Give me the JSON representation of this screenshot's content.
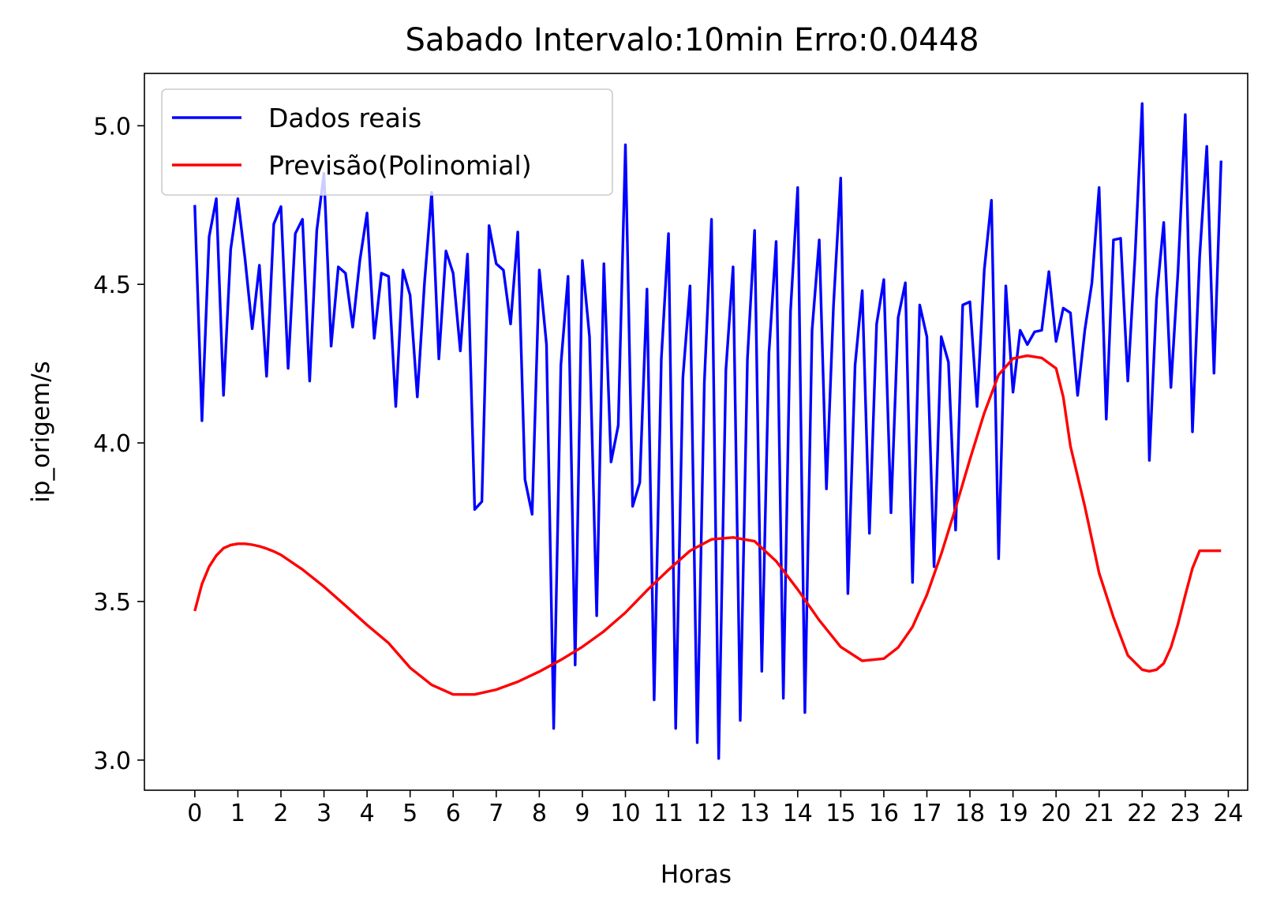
{
  "chart_data": {
    "type": "line",
    "title": "Sabado Intervalo:10min Erro:0.0448",
    "xlabel": "Horas",
    "ylabel": "ip_origem/s",
    "xlim": [
      -1.17,
      24.45
    ],
    "ylim": [
      2.905,
      5.165
    ],
    "xticks": [
      0,
      1,
      2,
      3,
      4,
      5,
      6,
      7,
      8,
      9,
      10,
      11,
      12,
      13,
      14,
      15,
      16,
      17,
      18,
      19,
      20,
      21,
      22,
      23,
      24
    ],
    "xtick_labels": [
      "0",
      "1",
      "2",
      "3",
      "4",
      "5",
      "6",
      "7",
      "8",
      "9",
      "10",
      "11",
      "12",
      "13",
      "14",
      "15",
      "16",
      "17",
      "18",
      "19",
      "20",
      "21",
      "22",
      "23",
      "24"
    ],
    "yticks": [
      3.0,
      3.5,
      4.0,
      4.5,
      5.0
    ],
    "ytick_labels": [
      "3.0",
      "3.5",
      "4.0",
      "4.5",
      "5.0"
    ],
    "grid": false,
    "legend_position": "top-left",
    "series": [
      {
        "name": "Dados reais",
        "color": "#0000ff",
        "x": [
          0,
          0.1667,
          0.3333,
          0.5,
          0.6667,
          0.8333,
          1,
          1.1667,
          1.3333,
          1.5,
          1.6667,
          1.8333,
          2,
          2.1667,
          2.3333,
          2.5,
          2.6667,
          2.8333,
          3,
          3.1667,
          3.3333,
          3.5,
          3.6667,
          3.8333,
          4,
          4.1667,
          4.3333,
          4.5,
          4.6667,
          4.8333,
          5,
          5.1667,
          5.3333,
          5.5,
          5.6667,
          5.8333,
          6,
          6.1667,
          6.3333,
          6.5,
          6.6667,
          6.8333,
          7,
          7.1667,
          7.3333,
          7.5,
          7.6667,
          7.8333,
          8,
          8.1667,
          8.3333,
          8.5,
          8.6667,
          8.8333,
          9,
          9.1667,
          9.3333,
          9.5,
          9.6667,
          9.8333,
          10,
          10.1667,
          10.3333,
          10.5,
          10.6667,
          10.8333,
          11,
          11.1667,
          11.3333,
          11.5,
          11.6667,
          11.8333,
          12,
          12.1667,
          12.3333,
          12.5,
          12.6667,
          12.8333,
          13,
          13.1667,
          13.3333,
          13.5,
          13.6667,
          13.8333,
          14,
          14.1667,
          14.3333,
          14.5,
          14.6667,
          14.8333,
          15,
          15.1667,
          15.3333,
          15.5,
          15.6667,
          15.8333,
          16,
          16.1667,
          16.3333,
          16.5,
          16.6667,
          16.8333,
          17,
          17.1667,
          17.3333,
          17.5,
          17.6667,
          17.8333,
          18,
          18.1667,
          18.3333,
          18.5,
          18.6667,
          18.8333,
          19,
          19.1667,
          19.3333,
          19.5,
          19.6667,
          19.8333,
          20,
          20.1667,
          20.3333,
          20.5,
          20.6667,
          20.8333,
          21,
          21.1667,
          21.3333,
          21.5,
          21.6667,
          21.8333,
          22,
          22.1667,
          22.3333,
          22.5,
          22.6667,
          22.8333,
          23,
          23.1667,
          23.3333,
          23.5,
          23.6667,
          23.8333
        ],
        "y": [
          4.75,
          4.07,
          4.65,
          4.77,
          4.15,
          4.61,
          4.77,
          4.58,
          4.36,
          4.56,
          4.21,
          4.69,
          4.745,
          4.235,
          4.66,
          4.705,
          4.195,
          4.67,
          4.85,
          4.305,
          4.555,
          4.535,
          4.365,
          4.575,
          4.725,
          4.33,
          4.535,
          4.525,
          4.115,
          4.545,
          4.465,
          4.145,
          4.505,
          4.79,
          4.265,
          4.605,
          4.535,
          4.29,
          4.595,
          3.79,
          3.815,
          4.685,
          4.565,
          4.545,
          4.375,
          4.665,
          3.885,
          3.775,
          4.545,
          4.31,
          3.1,
          4.245,
          4.525,
          3.3,
          4.575,
          4.335,
          3.455,
          4.565,
          3.94,
          4.055,
          4.94,
          3.8,
          3.875,
          4.485,
          3.19,
          4.265,
          4.66,
          3.1,
          4.205,
          4.495,
          3.055,
          4.19,
          4.705,
          3.005,
          4.23,
          4.555,
          3.125,
          4.265,
          4.67,
          3.28,
          4.285,
          4.635,
          3.195,
          4.415,
          4.805,
          3.15,
          4.355,
          4.64,
          3.855,
          4.435,
          4.835,
          3.525,
          4.245,
          4.48,
          3.715,
          4.375,
          4.515,
          3.78,
          4.395,
          4.505,
          3.56,
          4.435,
          4.335,
          3.61,
          4.335,
          4.255,
          3.725,
          4.435,
          4.445,
          4.115,
          4.545,
          4.765,
          3.635,
          4.495,
          4.16,
          4.355,
          4.31,
          4.35,
          4.355,
          4.54,
          4.32,
          4.425,
          4.41,
          4.15,
          4.355,
          4.505,
          4.805,
          4.075,
          4.64,
          4.645,
          4.195,
          4.585,
          5.07,
          3.945,
          4.455,
          4.695,
          4.175,
          4.545,
          5.035,
          4.035,
          4.585,
          4.935,
          4.22,
          4.89
        ]
      },
      {
        "name": "Previsão(Polinomial)",
        "color": "#ff0000",
        "x": [
          0,
          0.1667,
          0.3333,
          0.5,
          0.6667,
          0.8333,
          1,
          1.1667,
          1.3333,
          1.5,
          1.6667,
          1.8333,
          2,
          2.5,
          3,
          3.5,
          4,
          4.5,
          5,
          5.5,
          6,
          6.5,
          7,
          7.5,
          8,
          8.5,
          9,
          9.5,
          10,
          10.5,
          11,
          11.5,
          12,
          12.5,
          13,
          13.5,
          14,
          14.5,
          15,
          15.5,
          16,
          16.3333,
          16.6667,
          17,
          17.3333,
          17.6667,
          18,
          18.3333,
          18.6667,
          19,
          19.3333,
          19.6667,
          20,
          20.1667,
          20.3333,
          20.6667,
          21,
          21.3333,
          21.6667,
          22,
          22.1667,
          22.3333,
          22.5,
          22.6667,
          22.8333,
          23,
          23.1667,
          23.3333,
          23.5,
          23.6667,
          23.8333
        ],
        "y": [
          3.47,
          3.555,
          3.61,
          3.645,
          3.668,
          3.678,
          3.682,
          3.682,
          3.679,
          3.674,
          3.667,
          3.658,
          3.647,
          3.601,
          3.547,
          3.487,
          3.426,
          3.369,
          3.291,
          3.237,
          3.207,
          3.207,
          3.222,
          3.247,
          3.279,
          3.316,
          3.357,
          3.406,
          3.465,
          3.535,
          3.6,
          3.66,
          3.696,
          3.702,
          3.69,
          3.627,
          3.538,
          3.441,
          3.357,
          3.313,
          3.32,
          3.355,
          3.42,
          3.521,
          3.65,
          3.795,
          3.948,
          4.094,
          4.215,
          4.266,
          4.275,
          4.268,
          4.235,
          4.145,
          3.99,
          3.8,
          3.59,
          3.45,
          3.33,
          3.285,
          3.28,
          3.285,
          3.305,
          3.355,
          3.43,
          3.52,
          3.605,
          3.66,
          3.66,
          3.66,
          3.66
        ]
      }
    ]
  }
}
